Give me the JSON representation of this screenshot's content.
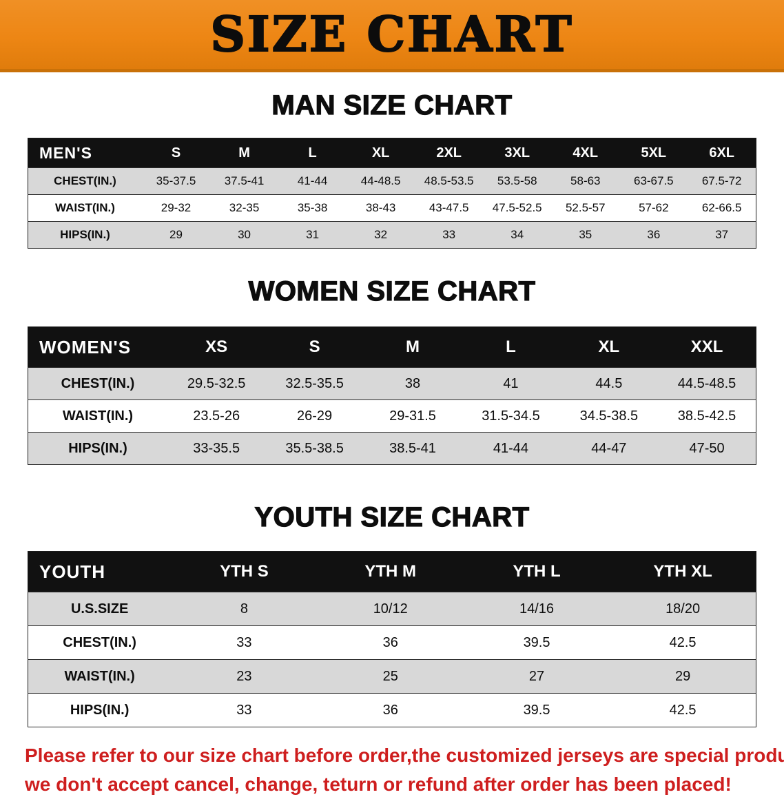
{
  "banner": {
    "title": "SIZE CHART"
  },
  "theme": {
    "banner_orange": "#ED8614",
    "banner_orange_dark": "#C97108",
    "header_black": "#111111",
    "row_shade": "#D8D8D8",
    "text_black": "#0D0D0D",
    "disclaimer_red": "#CE1E1E"
  },
  "chart_data": [
    {
      "type": "table",
      "title": "MAN SIZE CHART",
      "columns": [
        "MEN'S",
        "S",
        "M",
        "L",
        "XL",
        "2XL",
        "3XL",
        "4XL",
        "5XL",
        "6XL"
      ],
      "rows": [
        {
          "label": "CHEST(IN.)",
          "values": [
            "35-37.5",
            "37.5-41",
            "41-44",
            "44-48.5",
            "48.5-53.5",
            "53.5-58",
            "58-63",
            "63-67.5",
            "67.5-72"
          ]
        },
        {
          "label": "WAIST(IN.)",
          "values": [
            "29-32",
            "32-35",
            "35-38",
            "38-43",
            "43-47.5",
            "47.5-52.5",
            "52.5-57",
            "57-62",
            "62-66.5"
          ]
        },
        {
          "label": "HIPS(IN.)",
          "values": [
            "29",
            "30",
            "31",
            "32",
            "33",
            "34",
            "35",
            "36",
            "37"
          ]
        }
      ]
    },
    {
      "type": "table",
      "title": "WOMEN SIZE CHART",
      "columns": [
        "WOMEN'S",
        "XS",
        "S",
        "M",
        "L",
        "XL",
        "XXL"
      ],
      "rows": [
        {
          "label": "CHEST(IN.)",
          "values": [
            "29.5-32.5",
            "32.5-35.5",
            "38",
            "41",
            "44.5",
            "44.5-48.5"
          ]
        },
        {
          "label": "WAIST(IN.)",
          "values": [
            "23.5-26",
            "26-29",
            "29-31.5",
            "31.5-34.5",
            "34.5-38.5",
            "38.5-42.5"
          ]
        },
        {
          "label": "HIPS(IN.)",
          "values": [
            "33-35.5",
            "35.5-38.5",
            "38.5-41",
            "41-44",
            "44-47",
            "47-50"
          ]
        }
      ]
    },
    {
      "type": "table",
      "title": "YOUTH SIZE CHART",
      "columns": [
        "YOUTH",
        "YTH S",
        "YTH M",
        "YTH L",
        "YTH XL"
      ],
      "rows": [
        {
          "label": "U.S.SIZE",
          "values": [
            "8",
            "10/12",
            "14/16",
            "18/20"
          ]
        },
        {
          "label": "CHEST(IN.)",
          "values": [
            "33",
            "36",
            "39.5",
            "42.5"
          ]
        },
        {
          "label": "WAIST(IN.)",
          "values": [
            "23",
            "25",
            "27",
            "29"
          ]
        },
        {
          "label": "HIPS(IN.)",
          "values": [
            "33",
            "36",
            "39.5",
            "42.5"
          ]
        }
      ]
    }
  ],
  "disclaimer": {
    "lines": [
      "Please refer to our size chart before order,the customized jerseys are special products,",
      "we don't accept cancel, change, teturn or refund after order has been placed!"
    ]
  }
}
